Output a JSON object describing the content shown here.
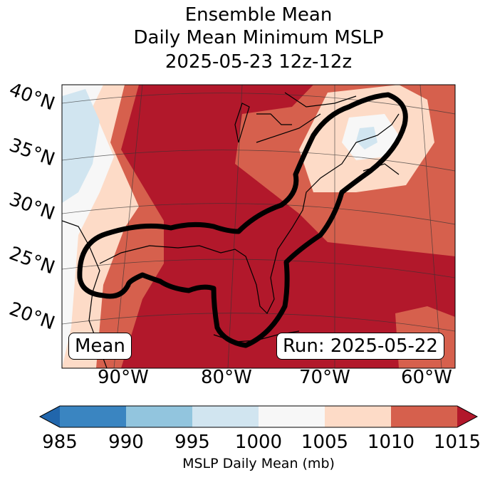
{
  "title": {
    "line1": "Ensemble Mean",
    "line2": "Daily Mean Minimum MSLP",
    "line3": "2025-05-23 12z-12z"
  },
  "map": {
    "lat_labels": [
      "40°N",
      "35°N",
      "30°N",
      "25°N",
      "20°N"
    ],
    "lon_labels": [
      "90°W",
      "80°W",
      "70°W",
      "60°W"
    ],
    "mean_box": "Mean",
    "run_box": "Run: 2025-05-22",
    "colors": {
      "c985_990": "#3a85c1",
      "c990_995": "#92c5de",
      "c995_1000": "#d1e5f0",
      "c1000_1005": "#f7f7f7",
      "c1005_1010": "#fddbc7",
      "c1010_1015": "#d6604d",
      "c1015_plus": "#b2182b",
      "c_lt985": "#2166ac"
    }
  },
  "colorbar": {
    "ticks": [
      "985",
      "990",
      "995",
      "1000",
      "1005",
      "1010",
      "1015"
    ],
    "label": "MSLP Daily Mean (mb)"
  }
}
